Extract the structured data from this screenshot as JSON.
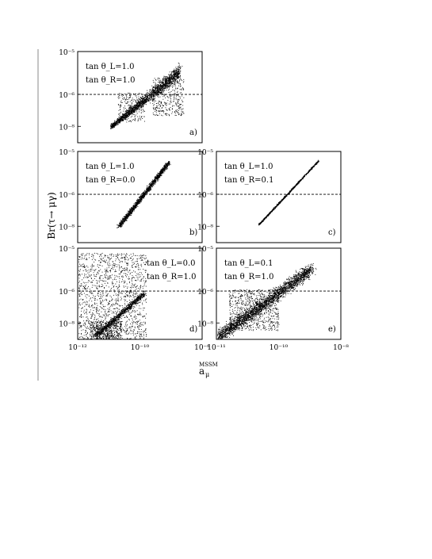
{
  "figure": {
    "ylabel": "Br(τ→ μγ)",
    "xlabel_main": "a",
    "xlabel_sub": "μ",
    "xlabel_sup": "MSSM"
  },
  "chart_data": [
    {
      "panel": "a)",
      "type": "scatter",
      "xscale": "log",
      "yscale": "log",
      "annotations": [
        "tan θ_L=1.0",
        "tan θ_R=1.0"
      ],
      "ylim": [
        1e-09,
        1e-05
      ],
      "y_ticks": [
        "10⁻⁵",
        "10⁻⁶",
        "10⁻⁸"
      ],
      "reference_line_y": 1e-06,
      "cloud": {
        "x_range": [
          5e-11,
          3e-09
        ],
        "y_range": [
          2e-09,
          5e-06
        ]
      }
    },
    {
      "panel": "b)",
      "type": "scatter",
      "xscale": "log",
      "yscale": "log",
      "annotations": [
        "tan θ_L=1.0",
        "tan θ_R=0.0"
      ],
      "ylim": [
        1e-09,
        1e-05
      ],
      "y_ticks": [
        "10⁻⁵",
        "10⁻⁶",
        "10⁻⁸"
      ],
      "reference_line_y": 1e-06,
      "cloud": {
        "x_range": [
          5e-11,
          3e-09
        ],
        "y_range": [
          2e-09,
          5e-06
        ]
      }
    },
    {
      "panel": "c)",
      "type": "scatter",
      "xscale": "log",
      "yscale": "log",
      "annotations": [
        "tan θ_L=1.0",
        "tan θ_R=0.1"
      ],
      "ylim": [
        1e-09,
        1e-05
      ],
      "y_ticks": [
        "10⁻⁵",
        "10⁻⁶",
        "10⁻⁸"
      ],
      "reference_line_y": 1e-06,
      "cloud": {
        "x_range": [
          5e-11,
          3e-09
        ],
        "y_range": [
          2e-09,
          5e-06
        ]
      }
    },
    {
      "panel": "d)",
      "type": "scatter",
      "xscale": "log",
      "yscale": "log",
      "annotations": [
        "tan θ_L=0.0",
        "tan θ_R=1.0"
      ],
      "xlim": [
        1e-12,
        1e-08
      ],
      "x_ticks": [
        "10⁻¹²",
        "10⁻¹⁰",
        "10⁻⁸"
      ],
      "ylim": [
        1e-09,
        1e-05
      ],
      "y_ticks": [
        "10⁻⁵",
        "10⁻⁶",
        "10⁻⁸"
      ],
      "reference_line_y": 1e-06,
      "cloud": {
        "x_range": [
          1e-12,
          1e-10
        ],
        "y_range": [
          1e-09,
          1e-05
        ]
      }
    },
    {
      "panel": "e)",
      "type": "scatter",
      "xscale": "log",
      "yscale": "log",
      "annotations": [
        "tan θ_L=0.1",
        "tan θ_R=1.0"
      ],
      "xlim": [
        1e-11,
        1e-08
      ],
      "x_ticks": [
        "10⁻¹¹",
        "10⁻¹⁰",
        "10⁻⁸"
      ],
      "ylim": [
        1e-09,
        1e-05
      ],
      "y_ticks": [
        "10⁻⁵",
        "10⁻⁶",
        "10⁻⁸"
      ],
      "reference_line_y": 1e-06,
      "cloud": {
        "x_range": [
          1e-11,
          5e-09
        ],
        "y_range": [
          1e-09,
          5e-06
        ]
      }
    }
  ]
}
